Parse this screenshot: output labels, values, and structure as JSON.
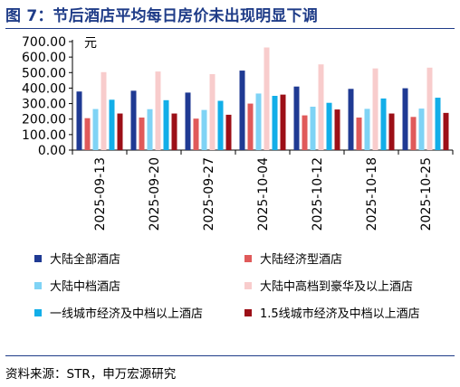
{
  "title": "图 7：节后酒店平均每日房价未出现明显下调",
  "source": "资料来源：STR，申万宏源研究",
  "chart_data": {
    "type": "bar",
    "unit_label": "元",
    "ylim": [
      0,
      700
    ],
    "yticks": [
      "0.00",
      "100.00",
      "200.00",
      "300.00",
      "400.00",
      "500.00",
      "600.00",
      "700.00"
    ],
    "grid": false,
    "legend_position": "bottom",
    "categories": [
      "2025-09-13",
      "2025-09-20",
      "2025-09-27",
      "2025-10-04",
      "2025-10-12",
      "2025-10-18",
      "2025-10-25"
    ],
    "series": [
      {
        "name": "大陆全部酒店",
        "color": "#1f3a93",
        "values": [
          378,
          383,
          371,
          513,
          410,
          395,
          399
        ]
      },
      {
        "name": "大陆经济型酒店",
        "color": "#e05a5a",
        "values": [
          206,
          210,
          203,
          300,
          224,
          210,
          214
        ]
      },
      {
        "name": "大陆中档酒店",
        "color": "#7fd3f5",
        "values": [
          265,
          264,
          259,
          365,
          280,
          266,
          268
        ]
      },
      {
        "name": "大陆中高档到豪华及以上酒店",
        "color": "#f8cccc",
        "values": [
          503,
          507,
          490,
          662,
          553,
          527,
          532
        ]
      },
      {
        "name": "一线城市经济及中档以上酒店",
        "color": "#12aee8",
        "values": [
          325,
          322,
          318,
          350,
          305,
          333,
          338
        ]
      },
      {
        "name": "1.5线城市经济及中档以上酒店",
        "color": "#9c0f17",
        "values": [
          236,
          236,
          228,
          358,
          262,
          236,
          240
        ]
      }
    ]
  }
}
